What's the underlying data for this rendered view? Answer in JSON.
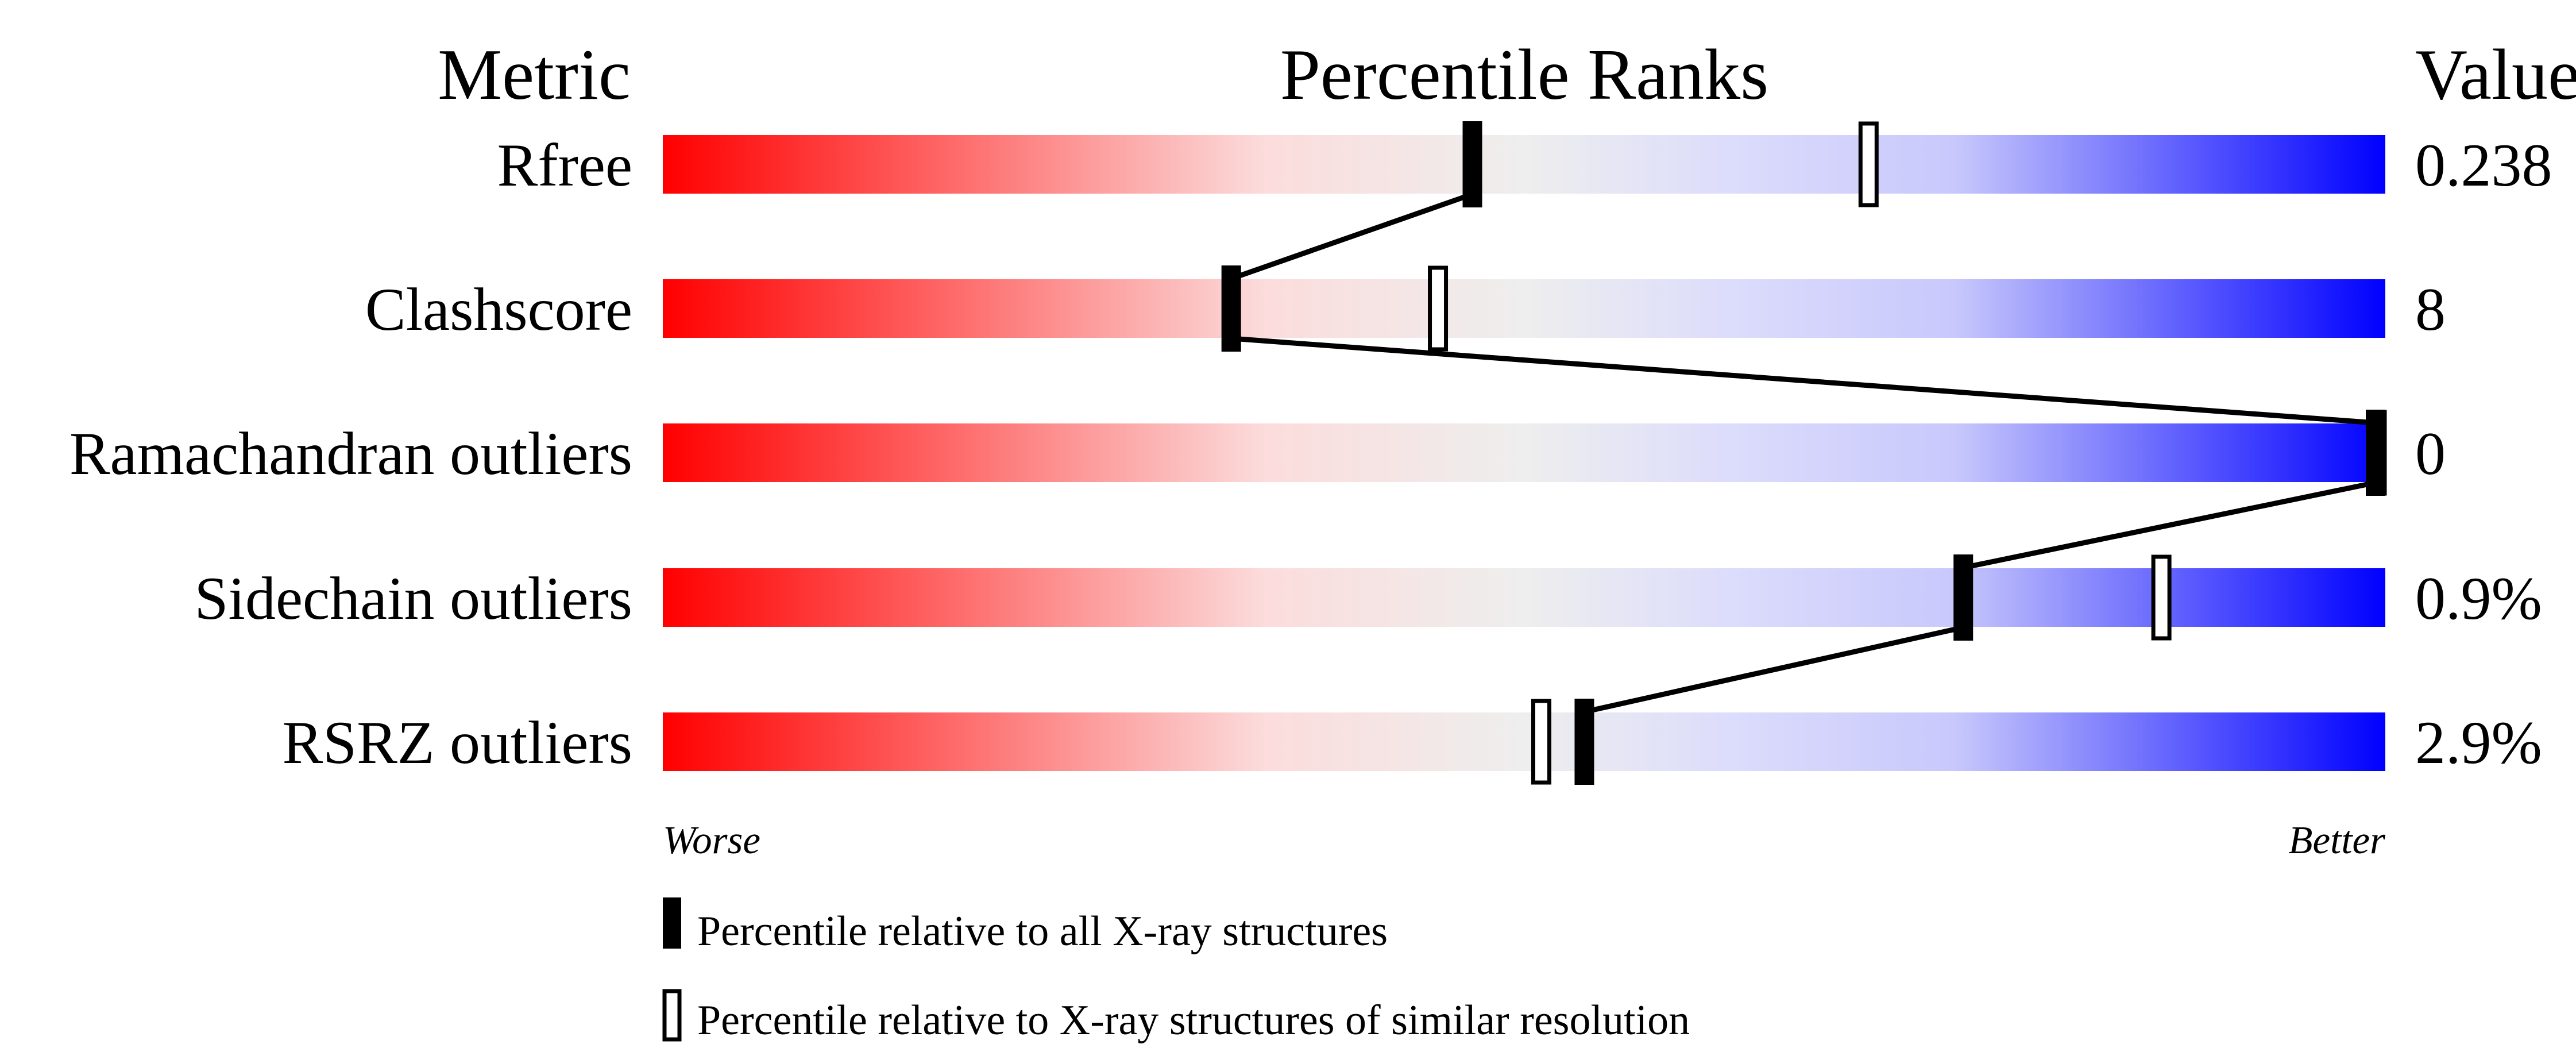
{
  "chart_data": {
    "type": "bar",
    "headers": {
      "metric": "Metric",
      "ranks": "Percentile Ranks",
      "value": "Value"
    },
    "xlim": [
      0,
      100
    ],
    "gradient_colors": [
      "#ff0000",
      "#fcdcdc",
      "#eeeeee",
      "#dcdcfc",
      "#0000ff"
    ],
    "rows": [
      {
        "metric": "Rfree",
        "value": "0.238",
        "percentile_all": 47,
        "percentile_similar": 70
      },
      {
        "metric": "Clashscore",
        "value": "8",
        "percentile_all": 33,
        "percentile_similar": 45
      },
      {
        "metric": "Ramachandran outliers",
        "value": "0",
        "percentile_all": 100,
        "percentile_similar": 100
      },
      {
        "metric": "Sidechain outliers",
        "value": "0.9%",
        "percentile_all": 75.5,
        "percentile_similar": 87
      },
      {
        "metric": "RSRZ outliers",
        "value": "2.9%",
        "percentile_all": 53.5,
        "percentile_similar": 51
      }
    ],
    "axis": {
      "left_label": "Worse",
      "right_label": "Better"
    },
    "legend": [
      {
        "marker": "filled",
        "label": "Percentile relative to all X-ray structures"
      },
      {
        "marker": "hollow",
        "label": "Percentile relative to X-ray structures of similar resolution"
      }
    ]
  }
}
